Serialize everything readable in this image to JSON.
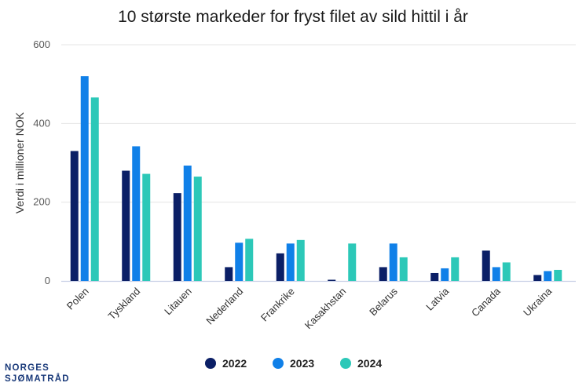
{
  "chart_data": {
    "type": "bar",
    "title": "10 største markeder for fryst filet av sild hittil i år",
    "xlabel": "",
    "ylabel": "Verdi i millioner NOK",
    "ylim": [
      0,
      600
    ],
    "yticks": [
      0,
      200,
      400,
      600
    ],
    "grid": true,
    "legend_position": "bottom-center",
    "categories": [
      "Polen",
      "Tyskland",
      "Litauen",
      "Nederland",
      "Frankrike",
      "Kasakhstan",
      "Belarus",
      "Latvia",
      "Canada",
      "Ukraina"
    ],
    "series": [
      {
        "name": "2022",
        "color": "#0b1f66",
        "values": [
          330,
          280,
          223,
          35,
          70,
          3,
          35,
          20,
          77,
          15
        ]
      },
      {
        "name": "2023",
        "color": "#1080e8",
        "values": [
          520,
          342,
          293,
          97,
          95,
          0,
          95,
          32,
          35,
          25
        ]
      },
      {
        "name": "2024",
        "color": "#2cc8b8",
        "values": [
          466,
          272,
          265,
          107,
          104,
          95,
          60,
          60,
          47,
          28
        ]
      }
    ]
  },
  "logo": {
    "line1": "NORGES",
    "line2": "SJØMATRÅD"
  }
}
